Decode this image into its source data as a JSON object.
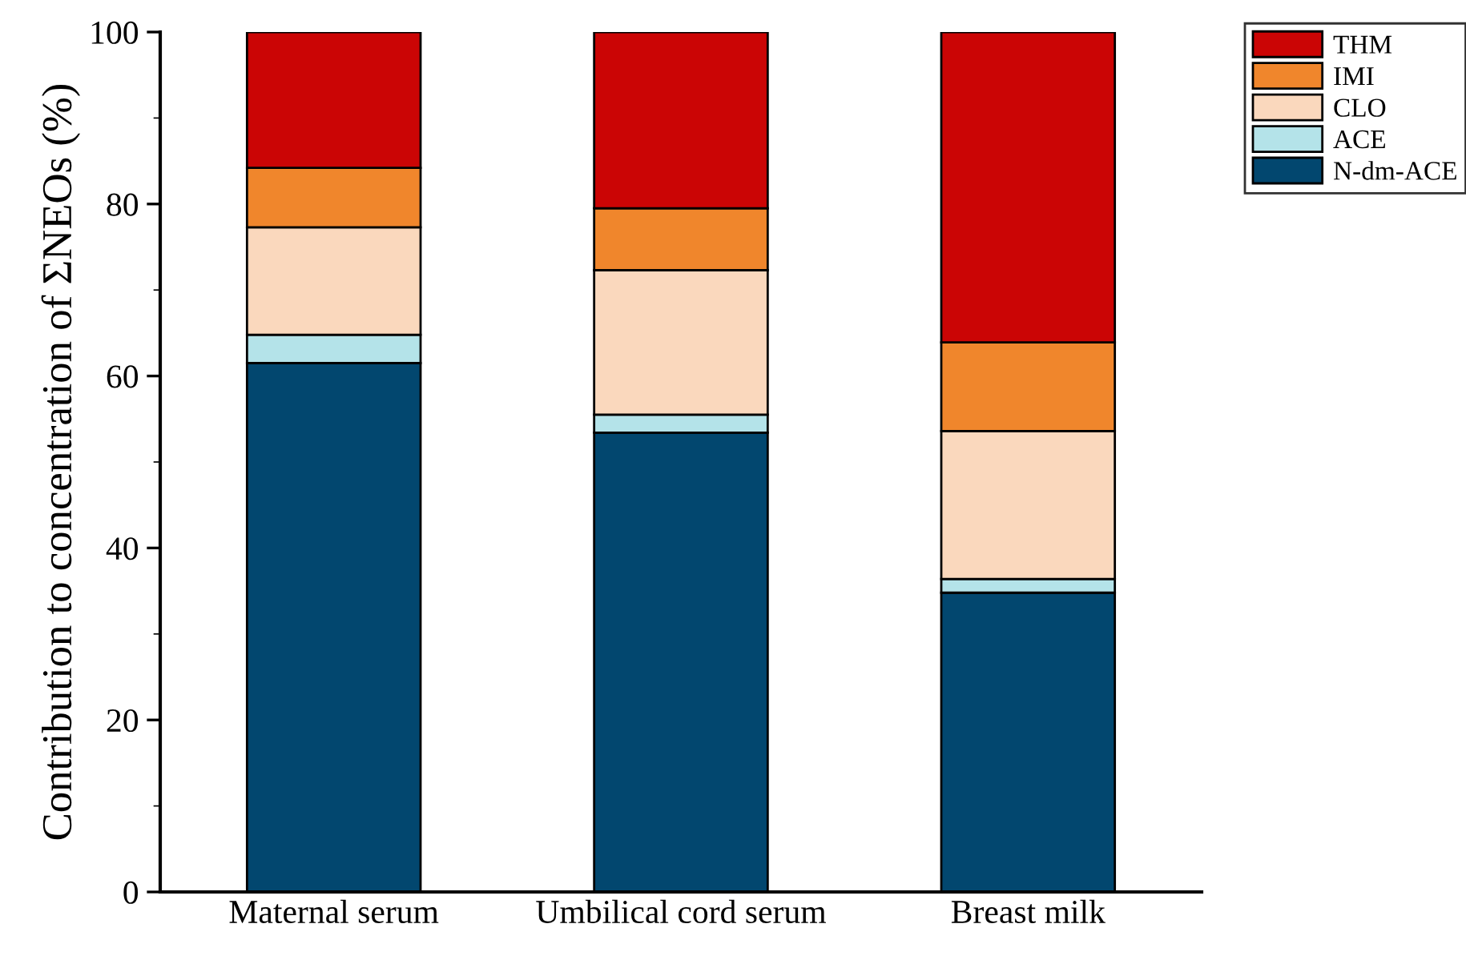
{
  "chart_data": {
    "type": "bar",
    "stacked": true,
    "ylabel": "Contribution to concentration of ΣNEOs (%)",
    "categories": [
      "Maternal serum",
      "Umbilical cord serum",
      "Breast milk"
    ],
    "series": [
      {
        "name": "N-dm-ACE",
        "color": "#02476f",
        "values": [
          61.5,
          53.4,
          34.8
        ]
      },
      {
        "name": "ACE",
        "color": "#b4e3e9",
        "values": [
          3.3,
          2.1,
          1.6
        ]
      },
      {
        "name": "CLO",
        "color": "#fad8bd",
        "values": [
          12.5,
          16.8,
          17.2
        ]
      },
      {
        "name": "IMI",
        "color": "#f0862c",
        "values": [
          6.9,
          7.2,
          10.3
        ]
      },
      {
        "name": "THM",
        "color": "#cb0505",
        "values": [
          15.8,
          20.5,
          36.1
        ]
      }
    ],
    "ylim": [
      0,
      100
    ],
    "yticks": [
      0,
      20,
      40,
      60,
      80,
      100
    ],
    "legend": "top right",
    "grid": false
  }
}
